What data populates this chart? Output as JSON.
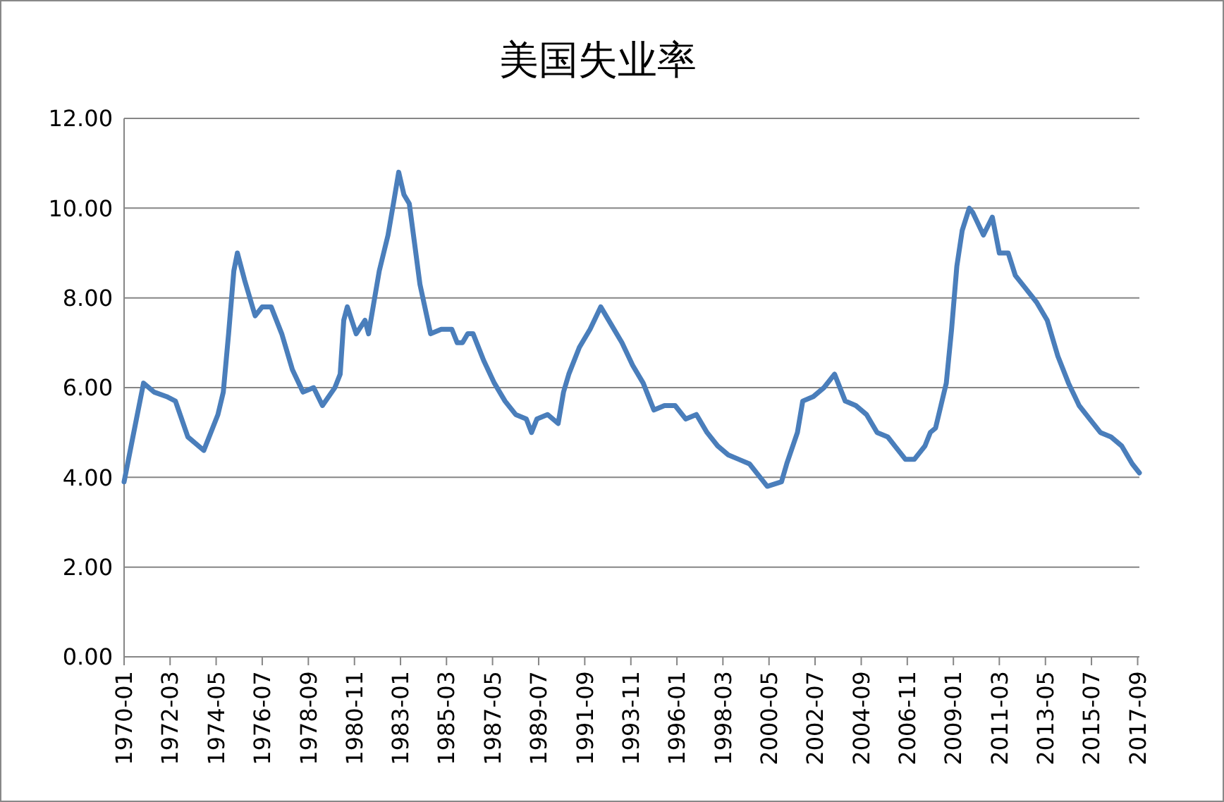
{
  "chart_data": {
    "type": "line",
    "title": "美国失业率",
    "grid": "y",
    "marker": "none",
    "line_style": "solid",
    "xlim": [
      "1970-01",
      "2017-10"
    ],
    "xticks": [
      "1970-01",
      "1972-03",
      "1974-05",
      "1976-07",
      "1978-09",
      "1980-11",
      "1983-01",
      "1985-03",
      "1987-05",
      "1989-07",
      "1991-09",
      "1993-11",
      "1996-01",
      "1998-03",
      "2000-05",
      "2002-07",
      "2004-09",
      "2006-11",
      "2009-01",
      "2011-03",
      "2013-05",
      "2015-07",
      "2017-09"
    ],
    "ylim": [
      0,
      12
    ],
    "yticks": [
      {
        "value": 0,
        "label": "0.00"
      },
      {
        "value": 2,
        "label": "2.00"
      },
      {
        "value": 4,
        "label": "4.00"
      },
      {
        "value": 6,
        "label": "6.00"
      },
      {
        "value": 8,
        "label": "8.00"
      },
      {
        "value": 10,
        "label": "10.00"
      },
      {
        "value": 12,
        "label": "12.00"
      }
    ],
    "x": [
      "1970-01",
      "1970-06",
      "1970-12",
      "1971-06",
      "1972-01",
      "1972-06",
      "1973-01",
      "1973-10",
      "1974-06",
      "1974-09",
      "1974-12",
      "1975-03",
      "1975-05",
      "1975-09",
      "1976-03",
      "1976-07",
      "1976-12",
      "1977-06",
      "1977-12",
      "1978-06",
      "1978-12",
      "1979-05",
      "1979-12",
      "1980-03",
      "1980-05",
      "1980-07",
      "1980-12",
      "1981-05",
      "1981-07",
      "1981-10",
      "1982-01",
      "1982-06",
      "1982-09",
      "1982-12",
      "1983-03",
      "1983-06",
      "1983-09",
      "1983-12",
      "1984-06",
      "1984-12",
      "1985-06",
      "1985-09",
      "1985-12",
      "1986-03",
      "1986-06",
      "1986-12",
      "1987-06",
      "1987-12",
      "1988-06",
      "1988-12",
      "1989-03",
      "1989-06",
      "1989-12",
      "1990-06",
      "1990-09",
      "1990-12",
      "1991-06",
      "1991-12",
      "1992-06",
      "1992-12",
      "1993-06",
      "1993-12",
      "1994-06",
      "1994-12",
      "1995-06",
      "1995-12",
      "1996-06",
      "1996-12",
      "1997-06",
      "1997-12",
      "1998-06",
      "1998-12",
      "1999-06",
      "1999-12",
      "2000-04",
      "2000-12",
      "2001-03",
      "2001-09",
      "2001-12",
      "2002-06",
      "2002-12",
      "2003-06",
      "2003-12",
      "2004-06",
      "2004-12",
      "2005-06",
      "2005-12",
      "2006-06",
      "2006-10",
      "2007-03",
      "2007-09",
      "2007-12",
      "2008-03",
      "2008-06",
      "2008-09",
      "2008-12",
      "2009-03",
      "2009-06",
      "2009-10",
      "2009-12",
      "2010-06",
      "2010-11",
      "2011-03",
      "2011-08",
      "2011-12",
      "2012-06",
      "2012-12",
      "2013-06",
      "2013-12",
      "2014-06",
      "2014-12",
      "2015-06",
      "2015-12",
      "2016-06",
      "2016-12",
      "2017-06",
      "2017-10"
    ],
    "series": [
      {
        "color": "#4a7ebb",
        "values": [
          3.9,
          4.9,
          6.1,
          5.9,
          5.8,
          5.7,
          4.9,
          4.6,
          5.4,
          5.9,
          7.2,
          8.6,
          9.0,
          8.4,
          7.6,
          7.8,
          7.8,
          7.2,
          6.4,
          5.9,
          6.0,
          5.6,
          6.0,
          6.3,
          7.5,
          7.8,
          7.2,
          7.5,
          7.2,
          7.9,
          8.6,
          9.4,
          10.1,
          10.8,
          10.3,
          10.1,
          9.2,
          8.3,
          7.2,
          7.3,
          7.3,
          7.0,
          7.0,
          7.2,
          7.2,
          6.6,
          6.1,
          5.7,
          5.4,
          5.3,
          5.0,
          5.3,
          5.4,
          5.2,
          5.9,
          6.3,
          6.9,
          7.3,
          7.8,
          7.4,
          7.0,
          6.5,
          6.1,
          5.5,
          5.6,
          5.6,
          5.3,
          5.4,
          5.0,
          4.7,
          4.5,
          4.4,
          4.3,
          4.0,
          3.8,
          3.9,
          4.3,
          5.0,
          5.7,
          5.8,
          6.0,
          6.3,
          5.7,
          5.6,
          5.4,
          5.0,
          4.9,
          4.6,
          4.4,
          4.4,
          4.7,
          5.0,
          5.1,
          5.6,
          6.1,
          7.3,
          8.7,
          9.5,
          10.0,
          9.9,
          9.4,
          9.8,
          9.0,
          9.0,
          8.5,
          8.2,
          7.9,
          7.5,
          6.7,
          6.1,
          5.6,
          5.3,
          5.0,
          4.9,
          4.7,
          4.3,
          4.1
        ]
      }
    ]
  }
}
